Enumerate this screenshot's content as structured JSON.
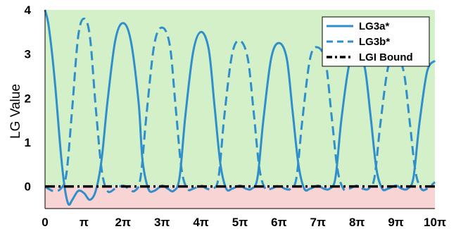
{
  "chart_data": {
    "type": "line",
    "title": "",
    "xlabel": "",
    "ylabel": "LG Value",
    "xlim_pi": [
      0,
      10
    ],
    "ylim": [
      -0.5,
      4
    ],
    "x_tick_labels": [
      "0",
      "π",
      "2π",
      "3π",
      "4π",
      "5π",
      "6π",
      "7π",
      "8π",
      "9π",
      "10π"
    ],
    "y_ticks": [
      0,
      1,
      2,
      3,
      4
    ],
    "y_tick_labels": [
      "0",
      "1",
      "2",
      "3",
      "4"
    ],
    "grid": false,
    "legend_position": "top-right",
    "regions": [
      {
        "y_from": 0,
        "y_to": 4,
        "color": "#d4f0c8"
      },
      {
        "y_from": -0.5,
        "y_to": 0,
        "color": "#f9d4d4"
      }
    ],
    "series": [
      {
        "name": "LG3a*",
        "style": "solid",
        "color": "#2e8fcb",
        "x_pi": [
          0,
          0.1,
          0.25,
          0.4,
          0.5,
          0.6,
          0.7,
          0.85,
          1.0,
          1.15,
          1.3,
          1.45,
          1.6,
          1.8,
          2.0,
          2.2,
          2.4,
          2.5,
          2.65,
          2.8,
          3.0,
          3.15,
          3.3,
          3.45,
          3.6,
          3.8,
          4.0,
          4.2,
          4.35,
          4.5,
          4.65,
          4.8,
          5.0,
          5.15,
          5.3,
          5.45,
          5.6,
          5.8,
          6.0,
          6.2,
          6.35,
          6.5,
          6.65,
          6.8,
          7.0,
          7.15,
          7.3,
          7.45,
          7.6,
          7.8,
          8.0,
          8.2,
          8.35,
          8.5,
          8.65,
          8.8,
          9.0,
          9.15,
          9.3,
          9.45,
          9.6,
          9.8,
          10.0
        ],
        "y": [
          4.0,
          3.6,
          2.4,
          0.8,
          0.0,
          -0.4,
          -0.3,
          -0.1,
          -0.15,
          -0.3,
          -0.1,
          0.6,
          1.9,
          3.3,
          3.7,
          3.3,
          1.9,
          0.6,
          -0.05,
          -0.1,
          0.02,
          -0.05,
          -0.1,
          0.2,
          1.6,
          3.05,
          3.5,
          3.1,
          1.8,
          0.5,
          -0.05,
          -0.05,
          0.02,
          -0.05,
          -0.05,
          0.2,
          1.5,
          2.9,
          3.25,
          2.9,
          1.7,
          0.5,
          -0.05,
          -0.05,
          0.02,
          -0.05,
          -0.05,
          0.2,
          1.5,
          2.75,
          3.05,
          2.7,
          1.6,
          0.4,
          -0.05,
          -0.05,
          0.02,
          -0.05,
          -0.05,
          0.2,
          1.4,
          2.6,
          2.85
        ]
      },
      {
        "name": "LG3b*",
        "style": "dashed",
        "color": "#2e8fcb",
        "x_pi": [
          0,
          0.2,
          0.4,
          0.55,
          0.7,
          0.85,
          1.0,
          1.15,
          1.3,
          1.45,
          1.6,
          1.8,
          2.0,
          2.15,
          2.3,
          2.45,
          2.6,
          2.8,
          3.0,
          3.2,
          3.35,
          3.5,
          3.65,
          3.8,
          4.0,
          4.15,
          4.3,
          4.45,
          4.6,
          4.8,
          5.0,
          5.2,
          5.35,
          5.5,
          5.65,
          5.8,
          6.0,
          6.15,
          6.3,
          6.45,
          6.6,
          6.8,
          7.0,
          7.2,
          7.35,
          7.5,
          7.65,
          7.8,
          8.0,
          8.15,
          8.3,
          8.45,
          8.6,
          8.8,
          9.0,
          9.2,
          9.35,
          9.5,
          9.65,
          9.8,
          10.0
        ],
        "y": [
          0.0,
          -0.1,
          -0.05,
          0.3,
          1.8,
          3.4,
          3.8,
          3.4,
          1.8,
          0.4,
          -0.1,
          -0.05,
          0.02,
          -0.05,
          -0.1,
          0.2,
          1.6,
          3.2,
          3.6,
          3.2,
          1.8,
          0.4,
          -0.05,
          -0.05,
          0.02,
          -0.05,
          -0.05,
          0.2,
          1.6,
          3.0,
          3.3,
          2.9,
          1.7,
          0.4,
          -0.05,
          -0.05,
          0.02,
          -0.05,
          -0.05,
          0.2,
          1.5,
          2.9,
          3.15,
          2.8,
          1.6,
          0.4,
          -0.05,
          -0.05,
          0.02,
          -0.05,
          -0.05,
          0.2,
          1.4,
          2.7,
          2.95,
          2.6,
          1.5,
          0.35,
          -0.05,
          -0.05,
          0.1
        ]
      },
      {
        "name": "LGI Bound",
        "style": "dashdot",
        "color": "#000000",
        "x_pi": [
          0,
          10
        ],
        "y": [
          0,
          0
        ]
      }
    ]
  }
}
